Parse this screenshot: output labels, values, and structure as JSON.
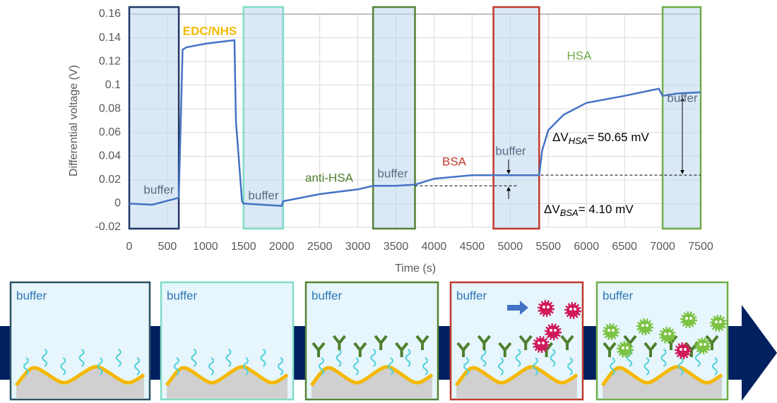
{
  "chart_data": {
    "type": "line",
    "x_label": "Time (s)",
    "y_label": "Differential voltage (V)",
    "xlim": [
      0,
      7500
    ],
    "xticks": [
      0,
      500,
      1000,
      1500,
      2000,
      2500,
      3000,
      3500,
      4000,
      4500,
      5000,
      5500,
      6000,
      6500,
      7000,
      7500
    ],
    "ylim": [
      -0.02,
      0.16
    ],
    "yticks": [
      -0.02,
      0,
      0.02,
      0.04,
      0.06,
      0.08,
      0.1,
      0.12,
      0.14,
      0.16
    ],
    "grid": true,
    "color": "#4472c4",
    "x": [
      0,
      300,
      600,
      650,
      700,
      750,
      1000,
      1380,
      1400,
      1480,
      1500,
      2000,
      2020,
      2500,
      3000,
      3200,
      3500,
      3750,
      4000,
      4500,
      4780,
      5000,
      5380,
      5420,
      5500,
      5700,
      6000,
      6500,
      6950,
      7000,
      7200,
      7500
    ],
    "values": [
      0,
      -0.001,
      0.004,
      0.005,
      0.13,
      0.132,
      0.135,
      0.138,
      0.07,
      0.002,
      0,
      -0.002,
      0.002,
      0.008,
      0.012,
      0.015,
      0.015,
      0.016,
      0.021,
      0.024,
      0.024,
      0.024,
      0.024,
      0.045,
      0.062,
      0.075,
      0.085,
      0.091,
      0.097,
      0.091,
      0.093,
      0.094
    ],
    "regions": [
      {
        "x": [
          0,
          650
        ],
        "color": "#1f3864"
      },
      {
        "x": [
          1500,
          2020
        ],
        "color": "#7fdcc8"
      },
      {
        "x": [
          3200,
          3750
        ],
        "color": "#548235"
      },
      {
        "x": [
          4780,
          5380
        ],
        "color": "#c0392b"
      },
      {
        "x": [
          7000,
          7500
        ],
        "color": "#70ad47"
      }
    ],
    "reference_lines": [
      {
        "y": 0.015,
        "x": [
          3750,
          5100
        ]
      },
      {
        "y": 0.024,
        "x": [
          5400,
          7500
        ]
      }
    ],
    "annotations": [
      {
        "text": "EDC/NHS",
        "color": "#f5b800"
      },
      {
        "text": "buffer",
        "color": "#596a84"
      },
      {
        "text": "buffer",
        "color": "#596a84"
      },
      {
        "text": "anti-HSA",
        "color": "#4e7f2e"
      },
      {
        "text": "buffer",
        "color": "#596a84"
      },
      {
        "text": "BSA",
        "color": "#c0392b"
      },
      {
        "text": "buffer",
        "color": "#596a84"
      },
      {
        "text": "HSA",
        "color": "#70ad47"
      },
      {
        "text": "buffer",
        "color": "#596a84"
      }
    ],
    "deltas": [
      {
        "prefix": "ΔV",
        "sub": "HSA",
        "suffix": "= 50.65 mV"
      },
      {
        "prefix": "ΔV",
        "sub": "BSA",
        "suffix": "= 4.10 mV"
      }
    ]
  },
  "diagram": {
    "panels": [
      {
        "label": "buffer",
        "color": "#2e5266"
      },
      {
        "label": "buffer",
        "color": "#7fdcc8"
      },
      {
        "label": "buffer",
        "color": "#548235"
      },
      {
        "label": "buffer",
        "color": "#c0392b"
      },
      {
        "label": "buffer",
        "color": "#70ad47"
      }
    ]
  }
}
